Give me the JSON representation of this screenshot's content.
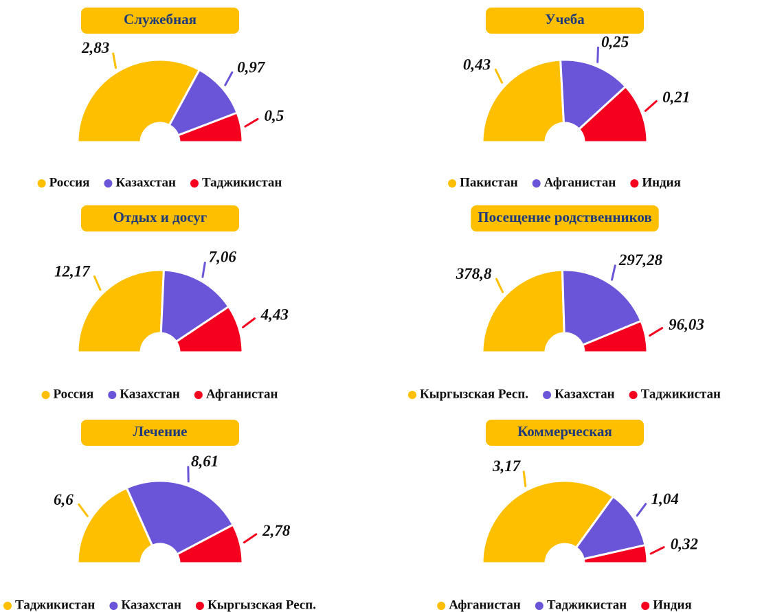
{
  "chart_data": [
    {
      "type": "semidonut",
      "title": "Служебная",
      "categories": [
        "Россия",
        "Казахстан",
        "Таджикистан"
      ],
      "values": [
        2.83,
        0.97,
        0.5
      ],
      "value_labels": [
        "2,83",
        "0,97",
        "0,5"
      ],
      "colors": [
        "#fdbf00",
        "#6a55d8",
        "#f5001f"
      ]
    },
    {
      "type": "semidonut",
      "title": "Учеба",
      "categories": [
        "Пакистан",
        "Афганистан",
        "Индия"
      ],
      "values": [
        0.43,
        0.25,
        0.21
      ],
      "value_labels": [
        "0,43",
        "0,25",
        "0,21"
      ],
      "colors": [
        "#fdbf00",
        "#6a55d8",
        "#f5001f"
      ]
    },
    {
      "type": "semidonut",
      "title": "Отдых и досуг",
      "categories": [
        "Россия",
        "Казахстан",
        "Афганистан"
      ],
      "values": [
        12.17,
        7.06,
        4.43
      ],
      "value_labels": [
        "12,17",
        "7,06",
        "4,43"
      ],
      "colors": [
        "#fdbf00",
        "#6a55d8",
        "#f5001f"
      ]
    },
    {
      "type": "semidonut",
      "title": "Посещение родственников",
      "categories": [
        "Кыргызская Респ.",
        "Казахстан",
        "Таджикистан"
      ],
      "values": [
        378.8,
        297.28,
        96.03
      ],
      "value_labels": [
        "378,8",
        "297,28",
        "96,03"
      ],
      "colors": [
        "#fdbf00",
        "#6a55d8",
        "#f5001f"
      ]
    },
    {
      "type": "semidonut",
      "title": "Лечение",
      "categories": [
        "Таджикистан",
        "Казахстан",
        "Кыргызская Респ."
      ],
      "values": [
        6.6,
        8.61,
        2.78
      ],
      "value_labels": [
        "6,6",
        "8,61",
        "2,78"
      ],
      "colors": [
        "#fdbf00",
        "#6a55d8",
        "#f5001f"
      ]
    },
    {
      "type": "semidonut",
      "title": "Коммерческая",
      "categories": [
        "Афганистан",
        "Таджикистан",
        "Индия"
      ],
      "values": [
        3.17,
        1.04,
        0.32
      ],
      "value_labels": [
        "3,17",
        "1,04",
        "0,32"
      ],
      "colors": [
        "#fdbf00",
        "#6a55d8",
        "#f5001f"
      ]
    }
  ]
}
